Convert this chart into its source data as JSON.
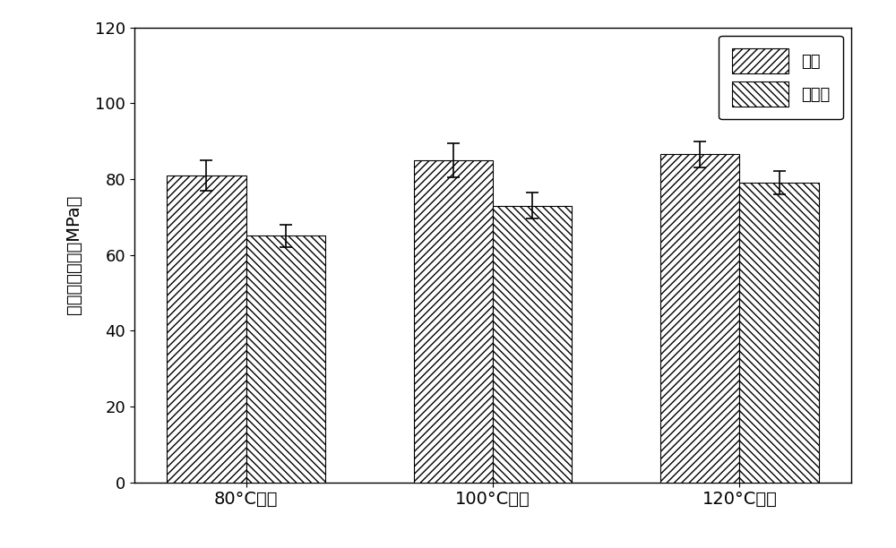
{
  "categories": [
    "80°C体系",
    "100°C体系",
    "120°C体系"
  ],
  "modified_values": [
    81.0,
    85.0,
    86.5
  ],
  "unmodified_values": [
    65.0,
    73.0,
    79.0
  ],
  "modified_errors": [
    4.0,
    4.5,
    3.5
  ],
  "unmodified_errors": [
    3.0,
    3.5,
    3.0
  ],
  "ylabel": "层间剪切强度（MPa）",
  "ylim": [
    0,
    120
  ],
  "yticks": [
    0,
    20,
    40,
    60,
    80,
    100,
    120
  ],
  "legend_modified": "改性",
  "legend_unmodified": "未改性",
  "bar_width": 0.32,
  "hatch_modified": "////",
  "hatch_unmodified": "\\\\\\\\",
  "figure_bg": "#ffffff",
  "axes_bg": "#ffffff"
}
